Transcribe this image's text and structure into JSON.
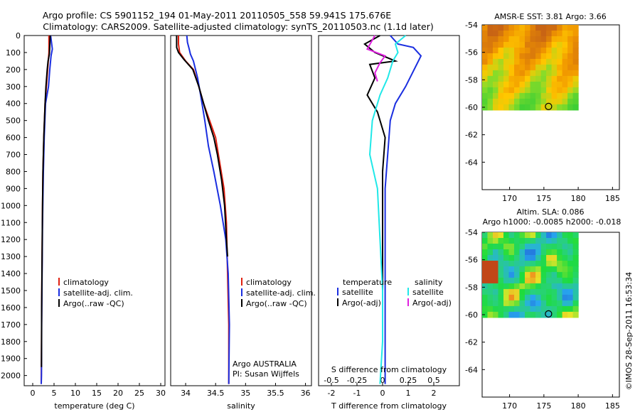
{
  "header": {
    "line1": "Argo profile: CS 5901152_194 01-May-2011 20110505_558 59.941S 175.676E",
    "line2": "Climatology: CARS2009. Satellite-adjusted climatology: synTS_20110503.nc (1.1d later)"
  },
  "stamp": "©IMOS 28-Sep-2011 16:53:34",
  "colors": {
    "red": "#e02010",
    "blue": "#1a2ee0",
    "black": "#000000",
    "cyan": "#20e8e8",
    "magenta": "#e020e0"
  },
  "chart_data": [
    {
      "type": "line",
      "name": "temperature",
      "xlabel": "temperature (deg C)",
      "ylabel": "",
      "xlim": [
        -2,
        31
      ],
      "ylim": [
        2060,
        0
      ],
      "xticks": [
        "0",
        "5",
        "10",
        "15",
        "20",
        "25",
        "30"
      ],
      "xtick_values": [
        0,
        5,
        10,
        15,
        20,
        25,
        30
      ],
      "yticks": [
        "0",
        "100",
        "200",
        "300",
        "400",
        "500",
        "600",
        "700",
        "800",
        "900",
        "1000",
        "1100",
        "1200",
        "1300",
        "1400",
        "1500",
        "1600",
        "1700",
        "1800",
        "1900",
        "2000"
      ],
      "ytick_values": [
        0,
        100,
        200,
        300,
        400,
        500,
        600,
        700,
        800,
        900,
        1000,
        1100,
        1200,
        1300,
        1400,
        1500,
        1600,
        1700,
        1800,
        1900,
        2000
      ],
      "legend": [
        "climatology",
        "satellite-adj. clim.",
        "Argo(..raw -QC)"
      ],
      "series": [
        {
          "name": "climatology",
          "color": "red",
          "x": [
            3.8,
            3.8,
            3.5,
            3.2,
            2.9,
            2.6,
            2.4,
            2.3,
            2.2,
            2.1,
            2.05,
            2.0
          ],
          "y": [
            0,
            100,
            200,
            300,
            400,
            600,
            800,
            1000,
            1300,
            1600,
            1900,
            2050
          ]
        },
        {
          "name": "satellite-adj. clim.",
          "color": "blue",
          "x": [
            4.2,
            4.6,
            4.3,
            4.0,
            3.7,
            3.0,
            2.7,
            2.5,
            2.3,
            2.2,
            2.1,
            2.05,
            2.0
          ],
          "y": [
            0,
            80,
            120,
            200,
            300,
            400,
            600,
            800,
            1100,
            1400,
            1700,
            2000,
            2050
          ]
        },
        {
          "name": "Argo(..raw -QC)",
          "color": "black",
          "x": [
            4.1,
            4.0,
            3.9,
            3.6,
            3.4,
            3.1,
            2.9,
            2.6,
            2.4,
            2.3,
            2.2,
            2.1,
            2.05
          ],
          "y": [
            0,
            60,
            110,
            150,
            200,
            300,
            400,
            600,
            800,
            1000,
            1300,
            1600,
            1950
          ]
        }
      ]
    },
    {
      "type": "line",
      "name": "salinity",
      "xlabel": "salinity",
      "xlim": [
        33.75,
        36.1
      ],
      "ylim": [
        2060,
        0
      ],
      "xticks": [
        "34",
        "34.5",
        "35",
        "35.5",
        "36"
      ],
      "xtick_values": [
        34,
        34.5,
        35,
        35.5,
        36
      ],
      "legend": [
        "climatology",
        "satellite-adj. clim.",
        "Argo(..raw -QC)"
      ],
      "annotation": [
        "Argo AUSTRALIA",
        "PI: Susan Wijffels"
      ],
      "series": [
        {
          "name": "climatology",
          "color": "red",
          "x": [
            33.88,
            33.88,
            33.9,
            34.0,
            34.13,
            34.22,
            34.3,
            34.4,
            34.5,
            34.57,
            34.64,
            34.68,
            34.7,
            34.72,
            34.72
          ],
          "y": [
            0,
            50,
            100,
            150,
            200,
            300,
            400,
            500,
            600,
            750,
            900,
            1100,
            1400,
            1700,
            2050
          ]
        },
        {
          "name": "satellite-adj. clim.",
          "color": "blue",
          "x": [
            34.02,
            34.03,
            34.06,
            34.08,
            34.13,
            34.2,
            34.25,
            34.32,
            34.38,
            34.47,
            34.58,
            34.67,
            34.71,
            34.73,
            34.72
          ],
          "y": [
            0,
            40,
            80,
            110,
            150,
            250,
            350,
            500,
            650,
            800,
            1000,
            1200,
            1400,
            1700,
            2050
          ]
        },
        {
          "name": "Argo(..raw -QC)",
          "color": "black",
          "x": [
            33.85,
            33.85,
            33.88,
            33.97,
            34.12,
            34.22,
            34.3,
            34.38,
            34.47,
            34.53,
            34.6,
            34.65,
            34.68,
            34.7
          ],
          "y": [
            0,
            70,
            100,
            140,
            200,
            300,
            400,
            500,
            600,
            700,
            850,
            1000,
            1200,
            1300
          ]
        }
      ]
    },
    {
      "type": "line",
      "name": "difference",
      "xlabel": "T difference from climatology",
      "xlabel_top": "S difference from climatology",
      "xlim": [
        -2.5,
        3
      ],
      "ylim": [
        2060,
        0
      ],
      "xticks": [
        "-2",
        "-1",
        "0",
        "1",
        "2"
      ],
      "xtick_values": [
        -2,
        -1,
        0,
        1,
        2
      ],
      "sticks": [
        "-0.5",
        "-0.25",
        "0",
        "0.25",
        "0.5"
      ],
      "stick_values": [
        -2,
        -1,
        0,
        1,
        2
      ],
      "legend_headers": [
        "temperature",
        "salinity"
      ],
      "legend": [
        "satellite",
        "Argo(-adj)",
        "satellite",
        "Argo(-adj)"
      ],
      "series": [
        {
          "name": "satellite",
          "group": "temperature",
          "color": "blue",
          "x": [
            0.3,
            0.6,
            1.2,
            1.5,
            1.3,
            0.9,
            0.5,
            0.3,
            0.2,
            0.1,
            0.1,
            0.1,
            0.1,
            0.1
          ],
          "y": [
            0,
            50,
            70,
            120,
            180,
            300,
            400,
            500,
            700,
            900,
            1200,
            1500,
            1800,
            2050
          ]
        },
        {
          "name": "Argo(-adj)",
          "group": "temperature",
          "color": "black",
          "x": [
            -0.1,
            -0.7,
            -0.3,
            0.5,
            -0.5,
            -0.3,
            -0.6,
            -0.2,
            0.1,
            0.0,
            0.0,
            0.0
          ],
          "y": [
            0,
            50,
            100,
            150,
            170,
            250,
            350,
            450,
            600,
            800,
            1200,
            1500
          ]
        },
        {
          "name": "satellite",
          "group": "salinity",
          "color": "cyan",
          "x": [
            0.9,
            0.5,
            0.6,
            0.4,
            0.2,
            -0.1,
            -0.4,
            -0.5,
            -0.2,
            -0.1,
            0.0,
            0.0,
            -0.1
          ],
          "y": [
            0,
            50,
            100,
            150,
            250,
            350,
            500,
            700,
            900,
            1200,
            1500,
            1800,
            2050
          ]
        },
        {
          "name": "Argo(-adj)",
          "group": "salinity",
          "color": "magenta",
          "x": [
            -0.3,
            -0.6,
            0.1,
            -0.1,
            -0.3,
            -0.2
          ],
          "y": [
            0,
            80,
            120,
            160,
            220,
            270
          ]
        }
      ]
    },
    {
      "type": "heatmap",
      "name": "amsre-sst",
      "title": "AMSR-E SST: 3.81  Argo: 3.66",
      "xlim": [
        166,
        186
      ],
      "ylim": [
        -66,
        -54
      ],
      "xticks": [
        "170",
        "175",
        "180",
        "185"
      ],
      "xtick_values": [
        170,
        175,
        180,
        185
      ],
      "yticks": [
        "-54",
        "-56",
        "-58",
        "-60",
        "-62",
        "-64"
      ],
      "ytick_values": [
        -54,
        -56,
        -58,
        -60,
        -62,
        -64
      ],
      "data_extent": {
        "lon": [
          166,
          180
        ],
        "lat": [
          -60.2,
          -54
        ]
      },
      "argo_position": {
        "lon": 175.676,
        "lat": -59.941
      }
    },
    {
      "type": "heatmap",
      "name": "altim-sla",
      "title": "Altim. SLA: 0.086",
      "subtitle": "Argo h1000: -0.0085 h2000: -0.018",
      "xlim": [
        166,
        186
      ],
      "ylim": [
        -66,
        -54
      ],
      "xticks": [
        "170",
        "175",
        "180",
        "185"
      ],
      "xtick_values": [
        170,
        175,
        180,
        185
      ],
      "yticks": [
        "-54",
        "-56",
        "-58",
        "-60",
        "-62",
        "-64"
      ],
      "ytick_values": [
        -54,
        -56,
        -58,
        -60,
        -62,
        -64
      ],
      "data_extent": {
        "lon": [
          166,
          180
        ],
        "lat": [
          -60.2,
          -54
        ]
      },
      "argo_position": {
        "lon": 175.676,
        "lat": -59.941
      }
    }
  ]
}
